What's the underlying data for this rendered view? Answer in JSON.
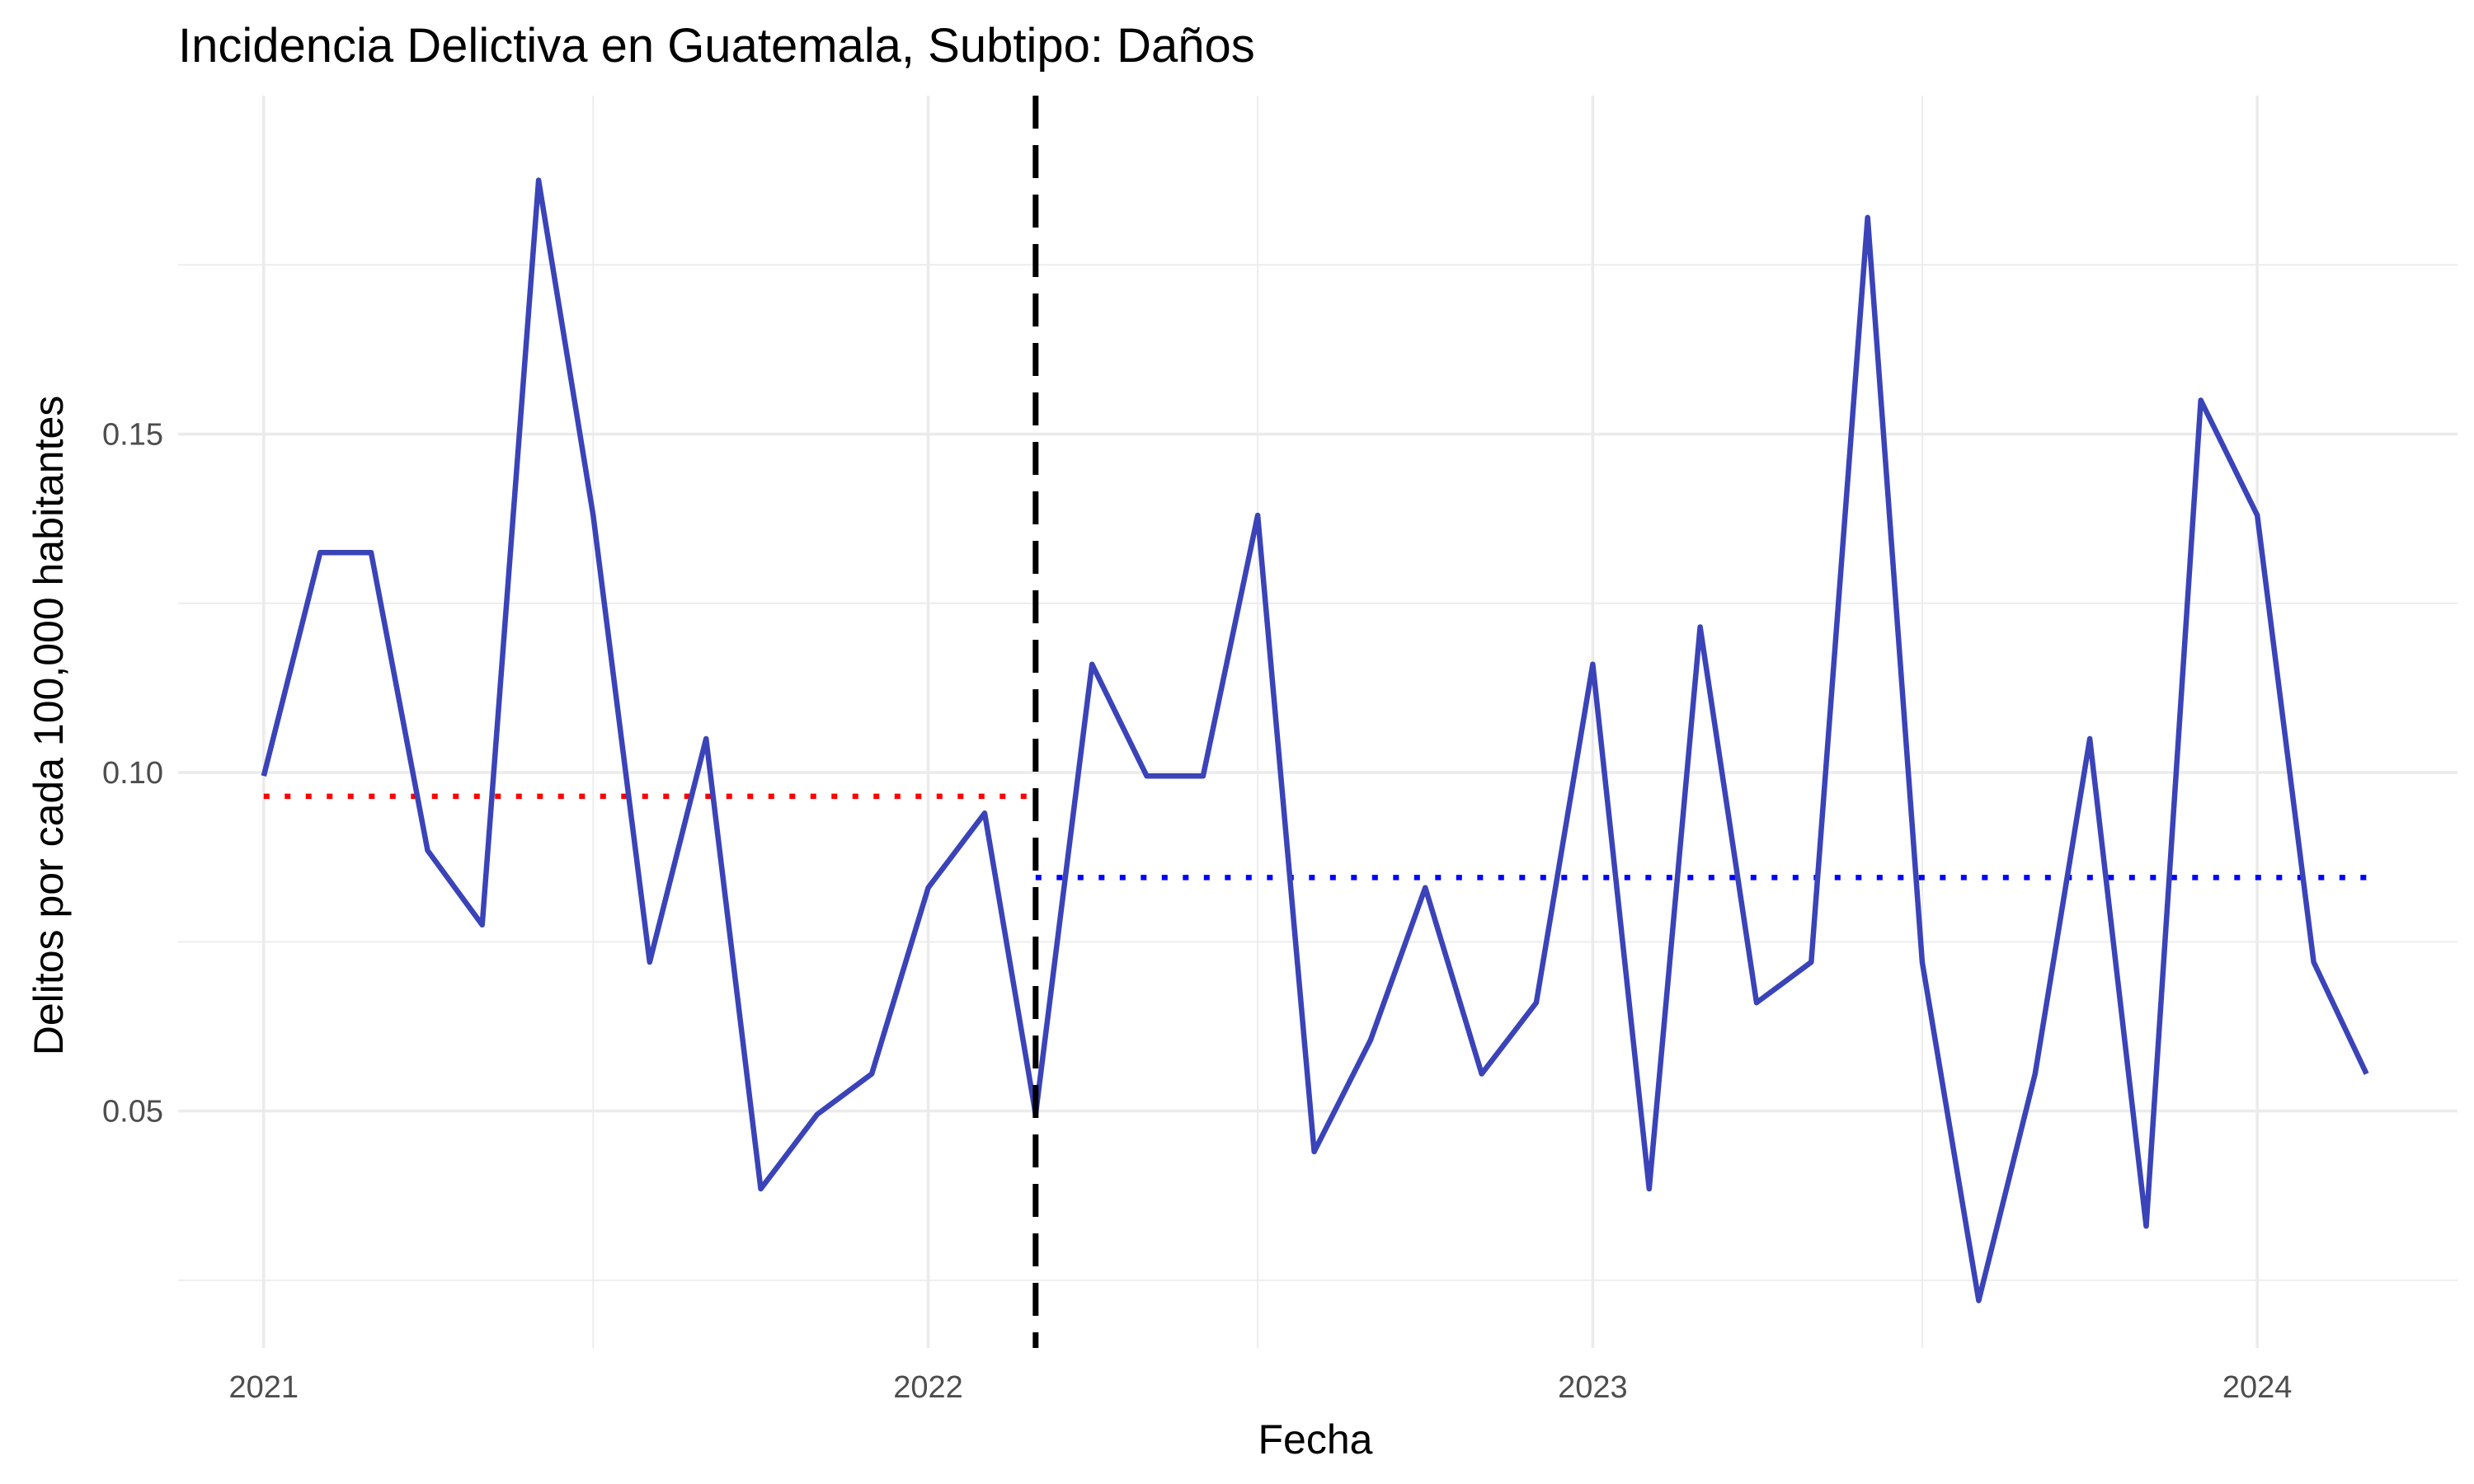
{
  "chart_data": {
    "type": "line",
    "title": "Incidencia Delictiva en Guatemala, Subtipo: Daños",
    "xlabel": "Fecha",
    "ylabel": "Delitos por cada 100,000 habitantes",
    "x_tick_labels": [
      "2021",
      "2022",
      "2023",
      "2024"
    ],
    "y_tick_labels": [
      "0.05",
      "0.10",
      "0.15"
    ],
    "y_ticks": [
      0.05,
      0.1,
      0.15
    ],
    "xlim": [
      "2020-11-15",
      "2024-04-20"
    ],
    "ylim": [
      0.015,
      0.2
    ],
    "grid": true,
    "series": [
      {
        "color": "#3a43b8",
        "x": [
          "2021-01-01",
          "2021-02-01",
          "2021-03-01",
          "2021-04-01",
          "2021-05-01",
          "2021-06-01",
          "2021-07-01",
          "2021-08-01",
          "2021-09-01",
          "2021-10-01",
          "2021-11-01",
          "2021-12-01",
          "2022-01-01",
          "2022-02-01",
          "2022-03-01",
          "2022-04-01",
          "2022-05-01",
          "2022-06-01",
          "2022-07-01",
          "2022-08-01",
          "2022-09-01",
          "2022-10-01",
          "2022-11-01",
          "2022-12-01",
          "2023-01-01",
          "2023-02-01",
          "2023-03-01",
          "2023-04-01",
          "2023-05-01",
          "2023-06-01",
          "2023-07-01",
          "2023-08-01",
          "2023-09-01",
          "2023-10-01",
          "2023-11-01",
          "2023-12-01",
          "2024-01-01",
          "2024-02-01",
          "2024-03-01"
        ],
        "values": [
          0.0995,
          0.1325,
          0.1325,
          0.0885,
          0.0775,
          0.1875,
          0.138,
          0.072,
          0.105,
          0.0385,
          0.0495,
          0.0555,
          0.083,
          0.094,
          0.0495,
          0.116,
          0.0995,
          0.0995,
          0.138,
          0.044,
          0.0605,
          0.083,
          0.0555,
          0.066,
          0.116,
          0.0385,
          0.1215,
          0.066,
          0.072,
          0.182,
          0.072,
          0.022,
          0.0555,
          0.105,
          0.033,
          0.155,
          0.138,
          0.072,
          0.0555
        ]
      }
    ],
    "annotations": [
      {
        "type": "vline",
        "x": "2022-03-01",
        "style": "dashed",
        "color": "#000000"
      },
      {
        "type": "hline",
        "y": 0.0965,
        "x_from": "2021-01-01",
        "x_to": "2022-02-28",
        "style": "dotted",
        "color": "#ff0000"
      },
      {
        "type": "hline",
        "y": 0.0845,
        "x_from": "2022-03-01",
        "x_to": "2024-03-01",
        "style": "dotted",
        "color": "#0000ff"
      }
    ]
  }
}
